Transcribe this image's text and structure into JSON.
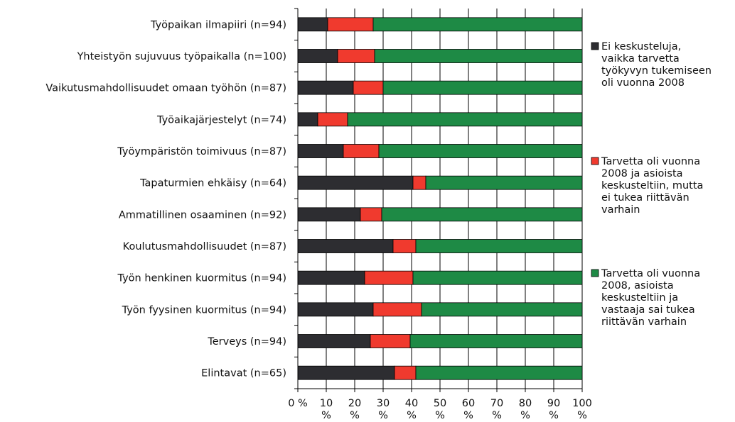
{
  "chart_data": {
    "type": "bar",
    "stacked": true,
    "orientation": "horizontal",
    "categories": [
      "Työpaikan ilmapiiri (n=94)",
      "Yhteistyön sujuvuus työpaikalla (n=100)",
      "Vaikutusmahdollisuudet omaan työhön (n=87)",
      "Työaikajärjestelyt (n=74)",
      "Työympäristön toimivuus (n=87)",
      "Tapaturmien ehkäisy (n=64)",
      "Ammatillinen osaaminen (n=92)",
      "Koulutusmahdollisuudet (n=87)",
      "Työn henkinen kuormitus (n=94)",
      "Työn fyysinen kuormitus (n=94)",
      "Terveys (n=94)",
      "Elintavat (n=65)"
    ],
    "series": [
      {
        "name": "Ei keskusteluja, vaikka tarvetta työkyvyn tukemiseen oli vuonna 2008",
        "name_lines": [
          "Ei keskusteluja,",
          "vaikka tarvetta",
          "työkyvyn tukemiseen",
          "oli vuonna 2008"
        ],
        "color": "#2d2d31",
        "values": [
          10.5,
          14,
          19.5,
          7,
          16,
          40.5,
          22,
          33.5,
          23.5,
          26.5,
          25.5,
          34
        ]
      },
      {
        "name": "Tarvetta oli vuonna 2008 ja asioista keskusteltiin, mutta ei tukea riittävän varhain",
        "name_lines": [
          "Tarvetta oli vuonna",
          "2008 ja asioista",
          "keskusteltiin, mutta",
          "ei tukea riittävän",
          "varhain"
        ],
        "color": "#f03a2e",
        "values": [
          16,
          13,
          10.5,
          10.5,
          12.5,
          4.5,
          7.5,
          8,
          17,
          17,
          14,
          7.5
        ]
      },
      {
        "name": "Tarvetta oli vuonna 2008, asioista keskusteltiin ja vastaaja sai tukea riittävän varhain",
        "name_lines": [
          "Tarvetta oli vuonna",
          "2008, asioista",
          "keskusteltiin ja",
          "vastaaja sai tukea",
          "riittävän varhain"
        ],
        "color": "#1e8a45",
        "values": [
          73.5,
          73,
          70,
          82.5,
          71.5,
          55,
          70.5,
          58.5,
          59.5,
          56.5,
          60.5,
          58.5
        ]
      }
    ],
    "x_ticks": [
      {
        "value": 0,
        "lines": [
          "0 %"
        ]
      },
      {
        "value": 10,
        "lines": [
          "10",
          "%"
        ]
      },
      {
        "value": 20,
        "lines": [
          "20",
          "%"
        ]
      },
      {
        "value": 30,
        "lines": [
          "30",
          "%"
        ]
      },
      {
        "value": 40,
        "lines": [
          "40",
          "%"
        ]
      },
      {
        "value": 50,
        "lines": [
          "50",
          "%"
        ]
      },
      {
        "value": 60,
        "lines": [
          "60",
          "%"
        ]
      },
      {
        "value": 70,
        "lines": [
          "70",
          "%"
        ]
      },
      {
        "value": 80,
        "lines": [
          "80",
          "%"
        ]
      },
      {
        "value": 90,
        "lines": [
          "90",
          "%"
        ]
      },
      {
        "value": 100,
        "lines": [
          "100",
          "%"
        ]
      }
    ],
    "xlim": [
      0,
      100
    ],
    "grid": true,
    "legend_position": "right",
    "title": "",
    "xlabel": "",
    "ylabel": ""
  }
}
